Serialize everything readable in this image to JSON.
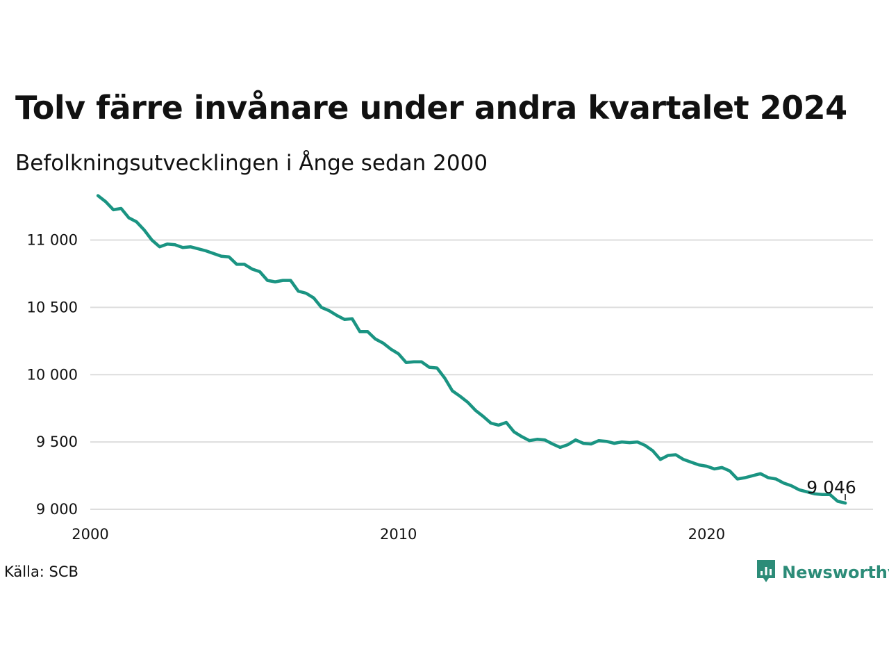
{
  "title": "Tolv färre invånare under andra kvartalet 2024",
  "subtitle": "Befolkningsutvecklingen i Ånge sedan 2000",
  "source": "Källa: SCB",
  "brand": {
    "name": "Newsworthy",
    "icon": "newsworthy-logo-icon",
    "color": "#2c8c78"
  },
  "chart_data": {
    "type": "line",
    "title": "Tolv färre invånare under andra kvartalet 2024",
    "subtitle": "Befolkningsutvecklingen i Ånge sedan 2000",
    "xlabel": "",
    "ylabel": "",
    "xlim": [
      2000,
      2025.4
    ],
    "ylim": [
      9000,
      11400
    ],
    "grid": true,
    "line_color": "#1a9482",
    "y_ticks": [
      {
        "value": 9000,
        "label": "9 000"
      },
      {
        "value": 9500,
        "label": "9 500"
      },
      {
        "value": 10000,
        "label": "10 000"
      },
      {
        "value": 10500,
        "label": "10 500"
      },
      {
        "value": 11000,
        "label": "11 000"
      }
    ],
    "x_ticks": [
      {
        "value": 2000,
        "label": "2000"
      },
      {
        "value": 2010,
        "label": "2010"
      },
      {
        "value": 2020,
        "label": "2020"
      }
    ],
    "end_label": "9 046",
    "series": [
      {
        "x": [
          2000.25,
          2000.5,
          2000.75,
          2001.0,
          2001.25,
          2001.5,
          2001.75,
          2002.0,
          2002.25,
          2002.5,
          2002.75,
          2003.0,
          2003.25,
          2003.5,
          2003.75,
          2004.0,
          2004.25,
          2004.5,
          2004.75,
          2005.0,
          2005.25,
          2005.5,
          2005.75,
          2006.0,
          2006.25,
          2006.5,
          2006.75,
          2007.0,
          2007.25,
          2007.5,
          2007.75,
          2008.0,
          2008.25,
          2008.5,
          2008.75,
          2009.0,
          2009.25,
          2009.5,
          2009.75,
          2010.0,
          2010.25,
          2010.5,
          2010.75,
          2011.0,
          2011.25,
          2011.5,
          2011.75,
          2012.0,
          2012.25,
          2012.5,
          2012.75,
          2013.0,
          2013.25,
          2013.5,
          2013.75,
          2014.0,
          2014.25,
          2014.5,
          2014.75,
          2015.0,
          2015.25,
          2015.5,
          2015.75,
          2016.0,
          2016.25,
          2016.5,
          2016.75,
          2017.0,
          2017.25,
          2017.5,
          2017.75,
          2018.0,
          2018.25,
          2018.5,
          2018.75,
          2019.0,
          2019.25,
          2019.5,
          2019.75,
          2020.0,
          2020.25,
          2020.5,
          2020.75,
          2021.0,
          2021.25,
          2021.5,
          2021.75,
          2022.0,
          2022.25,
          2022.5,
          2022.75,
          2023.0,
          2023.25,
          2023.5,
          2023.75,
          2024.0,
          2024.25,
          2024.5
        ],
        "values": [
          11330,
          11285,
          11225,
          11235,
          11165,
          11135,
          11075,
          11000,
          10950,
          10970,
          10965,
          10945,
          10950,
          10935,
          10920,
          10900,
          10880,
          10875,
          10820,
          10820,
          10785,
          10765,
          10700,
          10690,
          10700,
          10700,
          10620,
          10605,
          10570,
          10500,
          10475,
          10440,
          10410,
          10415,
          10320,
          10320,
          10265,
          10235,
          10190,
          10155,
          10090,
          10095,
          10095,
          10055,
          10050,
          9975,
          9880,
          9840,
          9795,
          9735,
          9690,
          9640,
          9625,
          9645,
          9575,
          9540,
          9510,
          9520,
          9515,
          9485,
          9460,
          9480,
          9515,
          9490,
          9485,
          9510,
          9505,
          9490,
          9500,
          9495,
          9500,
          9475,
          9435,
          9370,
          9400,
          9405,
          9370,
          9350,
          9330,
          9320,
          9300,
          9310,
          9285,
          9225,
          9235,
          9250,
          9265,
          9235,
          9225,
          9195,
          9175,
          9145,
          9130,
          9115,
          9110,
          9110,
          9060,
          9046
        ]
      }
    ]
  }
}
